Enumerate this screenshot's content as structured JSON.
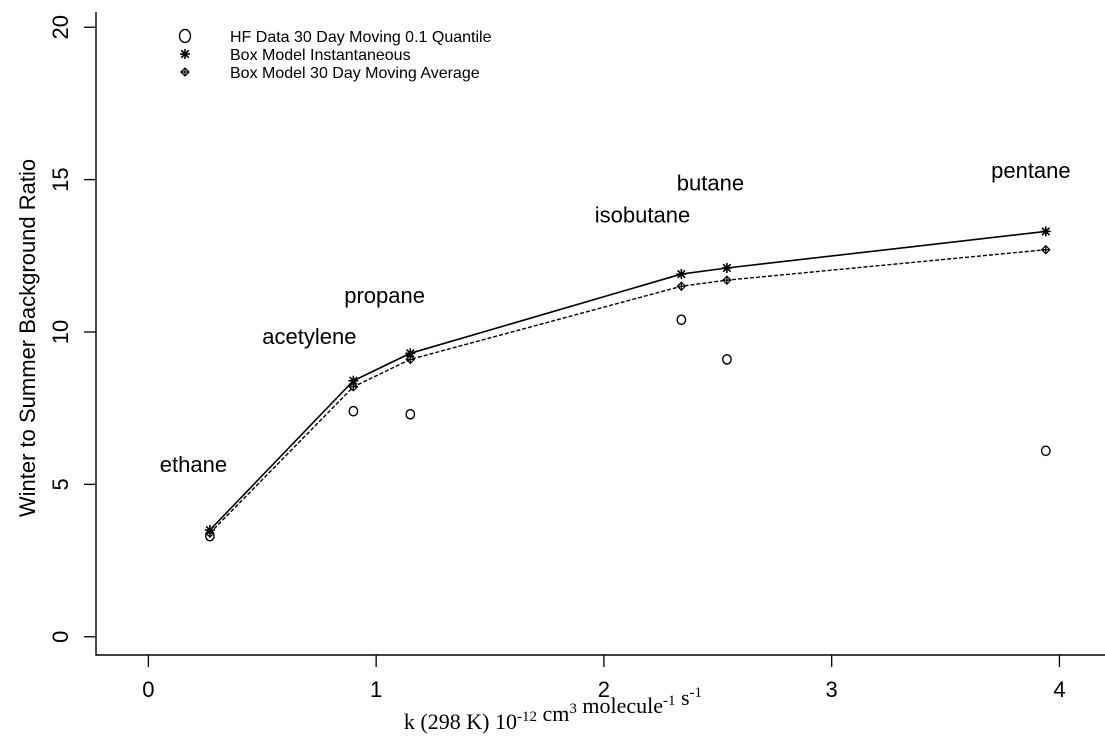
{
  "chart_data": {
    "type": "line",
    "title": "",
    "ylabel": "Winter to Summer Background Ratio",
    "xlabel": {
      "parts": [
        {
          "text": "k (298 K) 10",
          "sup": false
        },
        {
          "text": "-12",
          "sup": true
        },
        {
          "text": " cm",
          "sup": false
        },
        {
          "text": "3",
          "sup": true
        },
        {
          "text": " molecule",
          "sup": false
        },
        {
          "text": "-1",
          "sup": true
        },
        {
          "text": " s",
          "sup": false
        },
        {
          "text": "-1",
          "sup": true
        }
      ]
    },
    "xlim": [
      -0.23,
      4.2
    ],
    "ylim": [
      -0.6,
      20.5
    ],
    "xticks": [
      0,
      1,
      2,
      3,
      4
    ],
    "xtick_labels": [
      "0",
      "1",
      "2",
      "3",
      "4"
    ],
    "yticks": [
      0,
      5,
      10,
      15,
      20
    ],
    "ytick_labels": [
      "0",
      "5",
      "10",
      "15",
      "20"
    ],
    "grid": false,
    "legend_position": "top-left",
    "series": [
      {
        "name": "HF Data 30 Day Moving 0.1 Quantile",
        "marker": "circle",
        "line": "none",
        "x": [
          0.27,
          0.9,
          1.15,
          2.34,
          2.54,
          3.94
        ],
        "y": [
          3.3,
          7.4,
          7.3,
          10.4,
          9.1,
          6.1
        ]
      },
      {
        "name": "Box Model Instantaneous",
        "marker": "asterisk",
        "line": "solid",
        "x": [
          0.27,
          0.9,
          1.15,
          2.34,
          2.54,
          3.94
        ],
        "y": [
          3.5,
          8.4,
          9.3,
          11.9,
          12.1,
          13.3
        ]
      },
      {
        "name": "Box Model 30 Day Moving Average",
        "marker": "diamond-plus",
        "line": "dashed",
        "x": [
          0.27,
          0.9,
          1.15,
          2.34,
          2.54,
          3.94
        ],
        "y": [
          3.4,
          8.2,
          9.1,
          11.5,
          11.7,
          12.7
        ]
      }
    ],
    "annotations": [
      {
        "text": "ethane",
        "x": 0.05,
        "y": 5.4
      },
      {
        "text": "acetylene",
        "x": 0.5,
        "y": 9.6
      },
      {
        "text": "propane",
        "x": 0.86,
        "y": 10.95
      },
      {
        "text": "isobutane",
        "x": 1.96,
        "y": 13.6
      },
      {
        "text": "butane",
        "x": 2.32,
        "y": 14.65
      },
      {
        "text": "pentane",
        "x": 3.7,
        "y": 15.05
      }
    ]
  }
}
